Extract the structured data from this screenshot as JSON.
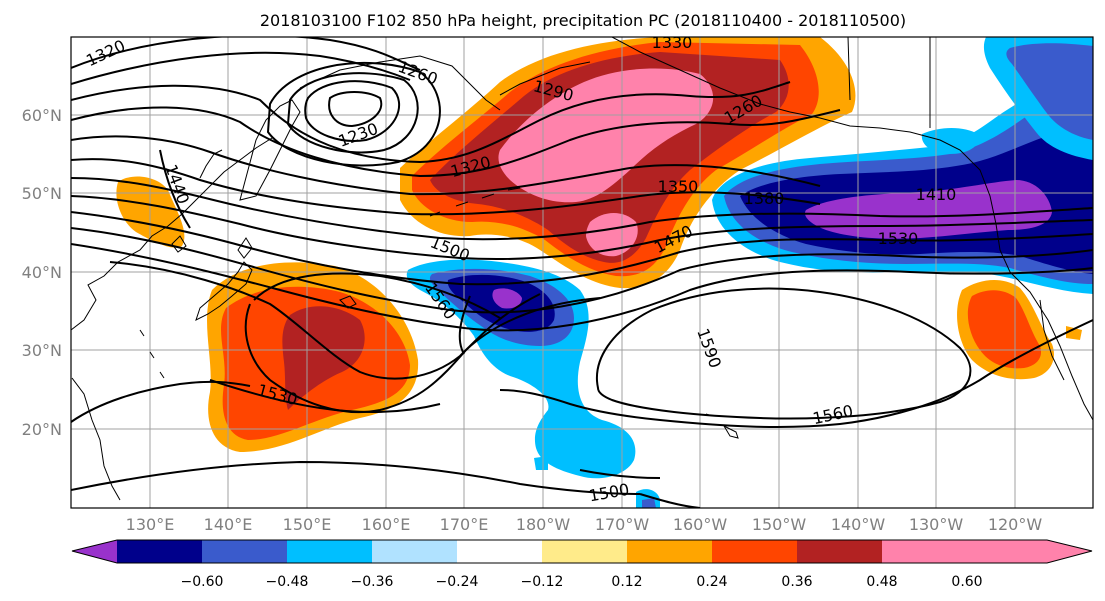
{
  "title": "2018103100 F102 850 hPa height, precipitation PC (2018110400 - 2018110500)",
  "lat_labels": [
    "60°N",
    "50°N",
    "40°N",
    "30°N",
    "20°N"
  ],
  "lon_labels": [
    "130°E",
    "140°E",
    "150°E",
    "160°E",
    "170°E",
    "180°W",
    "170°W",
    "160°W",
    "150°W",
    "140°W",
    "130°W",
    "120°W"
  ],
  "colorbar": {
    "tick_labels": [
      "−0.60",
      "−0.48",
      "−0.36",
      "−0.24",
      "−0.12",
      "0.12",
      "0.24",
      "0.36",
      "0.48",
      "0.60"
    ],
    "colors": [
      "#9932cc",
      "#00008b",
      "#3a5bcc",
      "#00bfff",
      "#b0e2ff",
      "#ffffff",
      "#ffeb8a",
      "#ffa500",
      "#ff4500",
      "#b22222",
      "#ff82ab"
    ]
  },
  "contour_labels": {
    "c1320a": "1320",
    "c1260a": "1260",
    "c1230": "1230",
    "c1440": "1440",
    "c1330": "1330",
    "c1290": "1290",
    "c1260b": "1260",
    "c1320b": "1320",
    "c1350": "1350",
    "c1380": "1380",
    "c1410": "1410",
    "c1500a": "1500",
    "c1470": "1470",
    "c1530a": "1530",
    "c1560a": "1560",
    "c1590": "1590",
    "c1530b": "1530",
    "c1560b": "1560",
    "c1500b": "1500"
  }
}
